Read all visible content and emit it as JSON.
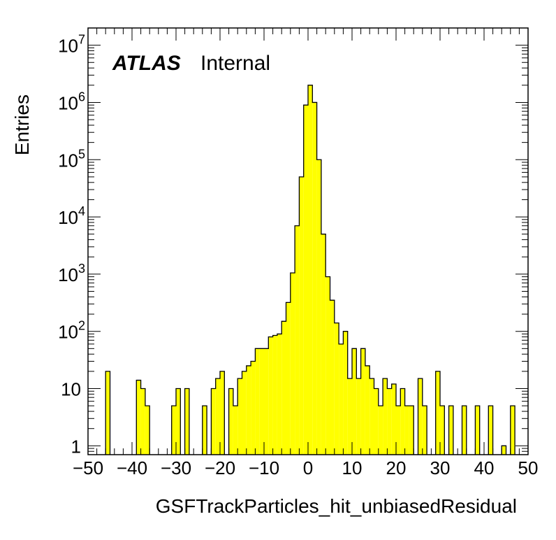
{
  "chart_data": {
    "type": "histogram",
    "title": "",
    "xlabel": "GSFTrackParticles_hit_unbiasedResidual",
    "ylabel": "Entries",
    "label_bold": "ATLAS",
    "label_status": "Internal",
    "xlim": [
      -50,
      50
    ],
    "ylim": [
      0.7,
      20000000
    ],
    "yscale": "log",
    "bin_width": 1,
    "fill_color": "#ffff00",
    "line_color": "#000000",
    "x_ticks": [
      "−50",
      "−40",
      "−30",
      "−20",
      "−10",
      "0",
      "10",
      "20",
      "30",
      "40",
      "50"
    ],
    "x_tick_values": [
      -50,
      -40,
      -30,
      -20,
      -10,
      0,
      10,
      20,
      30,
      40,
      50
    ],
    "y_ticks": [
      {
        "value": 1,
        "base": "1",
        "exp": ""
      },
      {
        "value": 10,
        "base": "10",
        "exp": ""
      },
      {
        "value": 100,
        "base": "10",
        "exp": "2"
      },
      {
        "value": 1000,
        "base": "10",
        "exp": "3"
      },
      {
        "value": 10000,
        "base": "10",
        "exp": "4"
      },
      {
        "value": 100000,
        "base": "10",
        "exp": "5"
      },
      {
        "value": 1000000,
        "base": "10",
        "exp": "6"
      },
      {
        "value": 10000000,
        "base": "10",
        "exp": "7"
      }
    ],
    "bins": [
      {
        "x": -46,
        "y": 20
      },
      {
        "x": -39,
        "y": 14
      },
      {
        "x": -38,
        "y": 10
      },
      {
        "x": -37,
        "y": 5
      },
      {
        "x": -31,
        "y": 5
      },
      {
        "x": -30,
        "y": 10
      },
      {
        "x": -28,
        "y": 10
      },
      {
        "x": -24,
        "y": 5
      },
      {
        "x": -22,
        "y": 10
      },
      {
        "x": -21,
        "y": 15
      },
      {
        "x": -20,
        "y": 20
      },
      {
        "x": -18,
        "y": 10
      },
      {
        "x": -17,
        "y": 5
      },
      {
        "x": -16,
        "y": 15
      },
      {
        "x": -15,
        "y": 20
      },
      {
        "x": -14,
        "y": 25
      },
      {
        "x": -13,
        "y": 30
      },
      {
        "x": -12,
        "y": 50
      },
      {
        "x": -11,
        "y": 50
      },
      {
        "x": -10,
        "y": 50
      },
      {
        "x": -9,
        "y": 80
      },
      {
        "x": -8,
        "y": 85
      },
      {
        "x": -7,
        "y": 90
      },
      {
        "x": -6,
        "y": 150
      },
      {
        "x": -5,
        "y": 320
      },
      {
        "x": -4,
        "y": 1050
      },
      {
        "x": -3,
        "y": 7000
      },
      {
        "x": -2,
        "y": 50000
      },
      {
        "x": -1,
        "y": 900000
      },
      {
        "x": 0,
        "y": 2000000
      },
      {
        "x": 1,
        "y": 1000000
      },
      {
        "x": 2,
        "y": 100000
      },
      {
        "x": 3,
        "y": 5000
      },
      {
        "x": 4,
        "y": 900
      },
      {
        "x": 5,
        "y": 350
      },
      {
        "x": 6,
        "y": 140
      },
      {
        "x": 7,
        "y": 60
      },
      {
        "x": 8,
        "y": 100
      },
      {
        "x": 9,
        "y": 15
      },
      {
        "x": 10,
        "y": 50
      },
      {
        "x": 11,
        "y": 15
      },
      {
        "x": 12,
        "y": 50
      },
      {
        "x": 13,
        "y": 25
      },
      {
        "x": 14,
        "y": 15
      },
      {
        "x": 15,
        "y": 10
      },
      {
        "x": 16,
        "y": 5
      },
      {
        "x": 17,
        "y": 15
      },
      {
        "x": 18,
        "y": 10
      },
      {
        "x": 19,
        "y": 12
      },
      {
        "x": 20,
        "y": 5
      },
      {
        "x": 21,
        "y": 10
      },
      {
        "x": 22,
        "y": 5
      },
      {
        "x": 23,
        "y": 5
      },
      {
        "x": 25,
        "y": 15
      },
      {
        "x": 26,
        "y": 5
      },
      {
        "x": 29,
        "y": 20
      },
      {
        "x": 30,
        "y": 5
      },
      {
        "x": 32,
        "y": 5
      },
      {
        "x": 35,
        "y": 5
      },
      {
        "x": 38,
        "y": 5
      },
      {
        "x": 41,
        "y": 5
      },
      {
        "x": 44,
        "y": 1
      },
      {
        "x": 46,
        "y": 5
      }
    ]
  }
}
